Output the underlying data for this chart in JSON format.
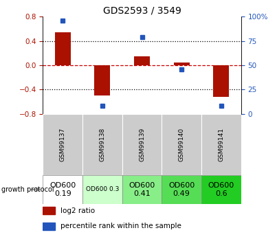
{
  "title": "GDS2593 / 3549",
  "samples": [
    "GSM99137",
    "GSM99138",
    "GSM99139",
    "GSM99140",
    "GSM99141"
  ],
  "log2_ratio": [
    0.54,
    -0.5,
    0.14,
    0.04,
    -0.52
  ],
  "percentile_rank": [
    96,
    8,
    79,
    46,
    8
  ],
  "left_ylim": [
    -0.8,
    0.8
  ],
  "right_ylim": [
    0,
    100
  ],
  "left_yticks": [
    -0.8,
    -0.4,
    0.0,
    0.4,
    0.8
  ],
  "right_yticks": [
    0,
    25,
    50,
    75,
    100
  ],
  "right_yticklabels": [
    "0",
    "25",
    "50",
    "75",
    "100%"
  ],
  "bar_color": "#aa1100",
  "dot_color": "#2255bb",
  "zero_line_color": "#cc0000",
  "dotted_line_color": "#000000",
  "growth_labels": [
    "OD600\n0.19",
    "OD600 0.3",
    "OD600\n0.41",
    "OD600\n0.49",
    "OD600\n0.6"
  ],
  "growth_colors": [
    "#ffffff",
    "#ccffcc",
    "#88ee88",
    "#55dd55",
    "#22cc22"
  ],
  "growth_fontsizes": [
    8,
    6.5,
    8,
    8,
    8
  ],
  "cell_bg": "#cccccc",
  "legend_red_label": "log2 ratio",
  "legend_blue_label": "percentile rank within the sample"
}
